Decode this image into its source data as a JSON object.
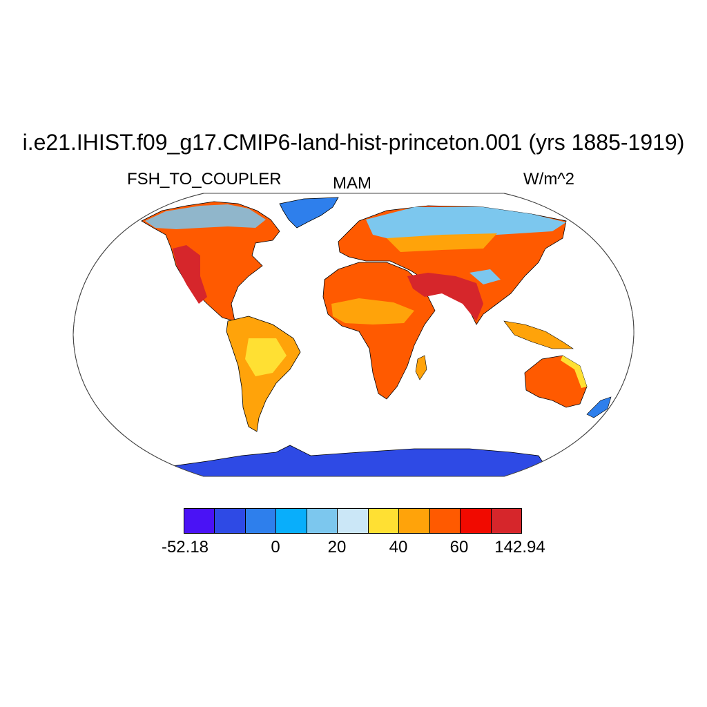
{
  "title": "i.e21.IHIST.f09_g17.CMIP6-land-hist-princeton.001 (yrs 1885-1919)",
  "variable": "FSH_TO_COUPLER",
  "season": "MAM",
  "units": "W/m^2",
  "colorbar": {
    "colors": [
      "#4a12f5",
      "#2e4ae5",
      "#2e7fec",
      "#09aefb",
      "#7cc7ee",
      "#cbe7f7",
      "#ffe033",
      "#ffa30a",
      "#ff5a00",
      "#f10a00",
      "#d6262b"
    ],
    "labels": [
      "-52.18",
      "0",
      "20",
      "40",
      "60",
      "142.94"
    ]
  },
  "regions": [
    {
      "name": "north-america",
      "color": "#ff5a00"
    },
    {
      "name": "greenland",
      "color": "#2e7fec"
    },
    {
      "name": "south-america",
      "color": "#ffa30a"
    },
    {
      "name": "africa",
      "color": "#ff5a00"
    },
    {
      "name": "eurasia",
      "color": "#ff5a00"
    },
    {
      "name": "australia",
      "color": "#ff5a00"
    },
    {
      "name": "antarctica",
      "color": "#2e4ae5"
    }
  ]
}
